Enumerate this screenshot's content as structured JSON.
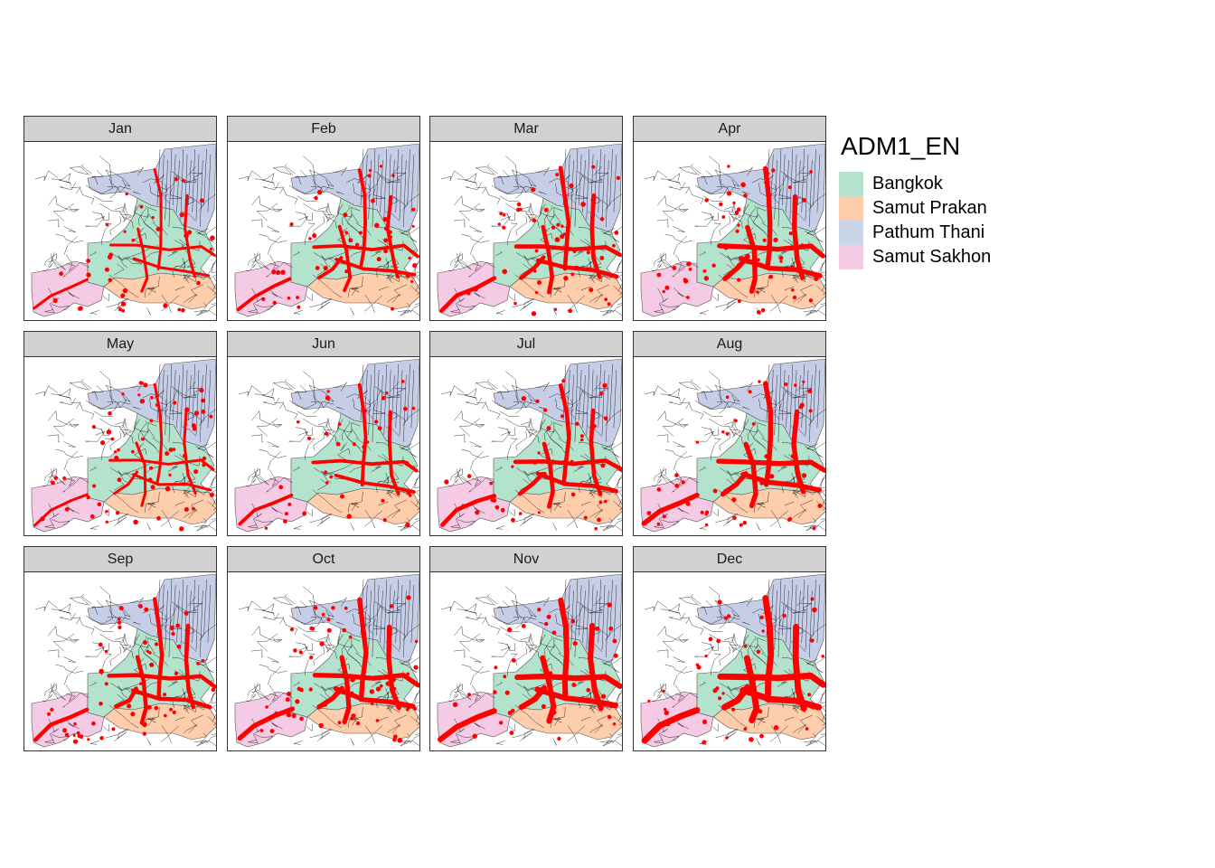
{
  "figure": {
    "legend": {
      "title": "ADM1_EN",
      "items": [
        {
          "label": "Bangkok",
          "color": "#b3e2cd"
        },
        {
          "label": "Samut Prakan",
          "color": "#fdcdac"
        },
        {
          "label": "Pathum Thani",
          "color": "#cbd5e8"
        },
        {
          "label": "Samut Sakhon",
          "color": "#f4cae4"
        }
      ]
    },
    "panels": [
      {
        "label": "Jan"
      },
      {
        "label": "Feb"
      },
      {
        "label": "Mar"
      },
      {
        "label": "Apr"
      },
      {
        "label": "May"
      },
      {
        "label": "Jun"
      },
      {
        "label": "Jul"
      },
      {
        "label": "Aug"
      },
      {
        "label": "Sep"
      },
      {
        "label": "Oct"
      },
      {
        "label": "Nov"
      },
      {
        "label": "Dec"
      }
    ],
    "colors": {
      "points": "#ff0000",
      "roads": "#000000",
      "strip_fill": "#d1d1d1",
      "border": "#333333"
    }
  }
}
